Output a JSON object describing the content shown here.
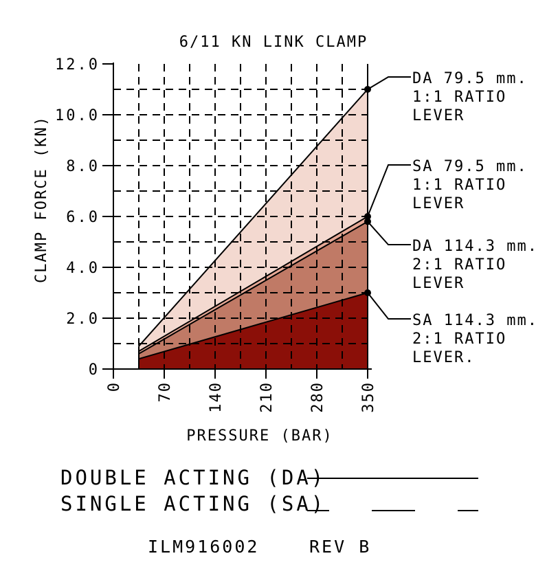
{
  "chart_data": {
    "type": "area",
    "title": "6/11 KN LINK CLAMP",
    "xlabel": "PRESSURE (BAR)",
    "ylabel": "CLAMP FORCE (KN)",
    "xlim": [
      0,
      350
    ],
    "ylim": [
      0,
      12
    ],
    "x_ticks": [
      0,
      70,
      140,
      210,
      280,
      350
    ],
    "y_ticks": [
      0,
      2,
      4,
      6,
      8,
      10,
      12
    ],
    "x_tick_labels": [
      "0",
      "70",
      "140",
      "210",
      "280",
      "350"
    ],
    "y_tick_labels": [
      "0",
      "2.0",
      "4.0",
      "6.0",
      "8.0",
      "10.0",
      "12.0"
    ],
    "grid": true,
    "series": [
      {
        "label_lines": [
          "DA 79.5 mm.",
          "1:1 RATIO",
          "LEVER"
        ],
        "x": [
          35,
          350
        ],
        "y": [
          0.9,
          11.0
        ],
        "fill": "#f3d9d0"
      },
      {
        "label_lines": [
          "SA 79.5 mm.",
          "1:1 RATIO",
          "LEVER"
        ],
        "x": [
          35,
          350
        ],
        "y": [
          0.7,
          6.0
        ],
        "fill": "#e6a895"
      },
      {
        "label_lines": [
          "DA 114.3 mm.",
          "2:1 RATIO",
          "LEVER"
        ],
        "x": [
          35,
          350
        ],
        "y": [
          0.6,
          5.8
        ],
        "fill": "#c07a66"
      },
      {
        "label_lines": [
          "SA 114.3 mm.",
          "2:1 RATIO",
          "LEVER."
        ],
        "x": [
          35,
          350
        ],
        "y": [
          0.4,
          3.0
        ],
        "fill": "#8b0f08"
      }
    ]
  },
  "legend": {
    "double_acting": "DOUBLE ACTING (DA)",
    "single_acting": "SINGLE ACTING (SA)"
  },
  "footer": {
    "drawing_number": "ILM916002",
    "revision": "REV B"
  }
}
